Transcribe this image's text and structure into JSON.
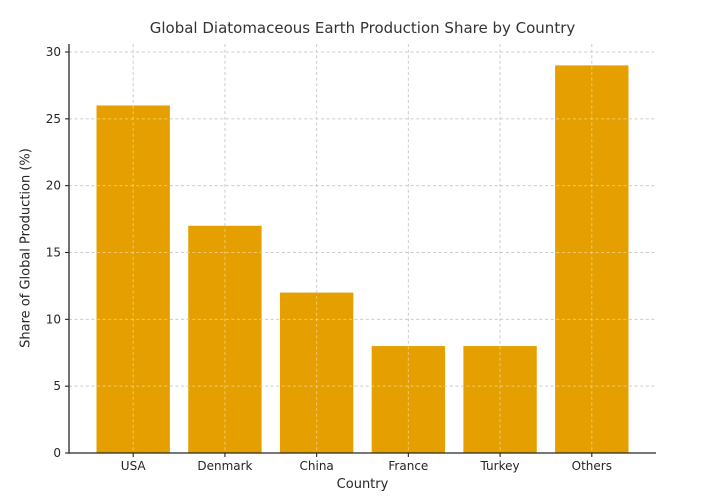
{
  "figure": {
    "background": "#ffffff"
  },
  "chart_data": {
    "type": "bar",
    "title": "Global Diatomaceous Earth Production Share by Country",
    "xlabel": "Country",
    "ylabel": "Share of Global Production (%)",
    "categories": [
      "USA",
      "Denmark",
      "China",
      "France",
      "Turkey",
      "Others"
    ],
    "values": [
      26,
      17,
      12,
      8,
      8,
      29
    ],
    "yticks": [
      0,
      5,
      10,
      15,
      20,
      25,
      30
    ],
    "ylim": [
      0,
      30.6
    ],
    "bar_color": "#E5A000",
    "grid": "dashed, horizontal and vertical, drawn over bars",
    "grid_color": "#cccccc",
    "axis_color": "#262626",
    "text_color": "#262626",
    "legend_position": "none"
  }
}
